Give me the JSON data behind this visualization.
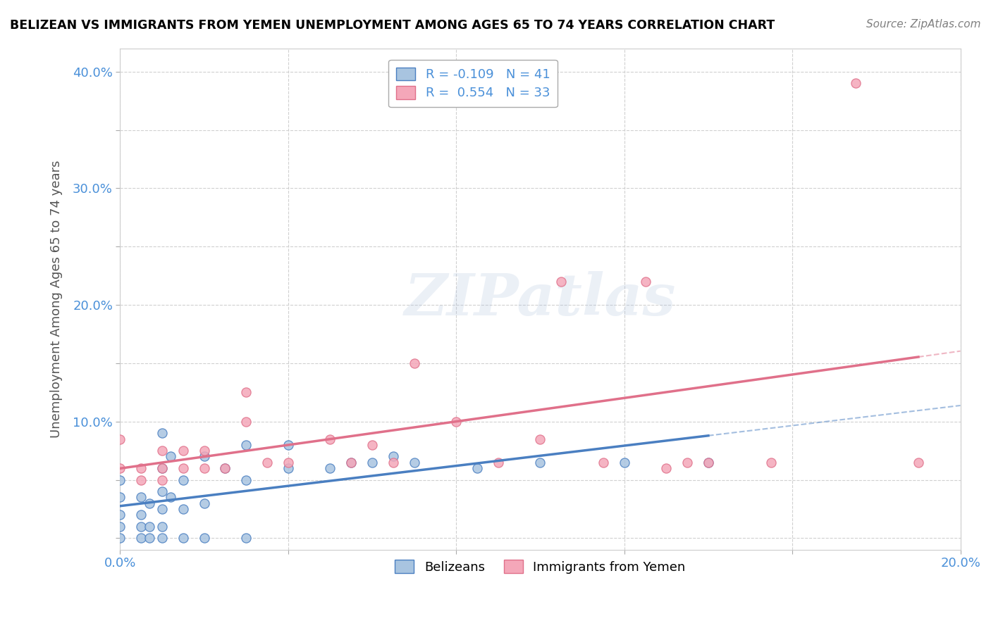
{
  "title": "BELIZEAN VS IMMIGRANTS FROM YEMEN UNEMPLOYMENT AMONG AGES 65 TO 74 YEARS CORRELATION CHART",
  "source": "Source: ZipAtlas.com",
  "ylabel_label": "Unemployment Among Ages 65 to 74 years",
  "xlim": [
    0.0,
    0.2
  ],
  "ylim": [
    -0.01,
    0.42
  ],
  "x_ticks": [
    0.0,
    0.04,
    0.08,
    0.12,
    0.16,
    0.2
  ],
  "x_tick_labels": [
    "0.0%",
    "",
    "",
    "",
    "",
    "20.0%"
  ],
  "y_ticks": [
    0.0,
    0.05,
    0.1,
    0.15,
    0.2,
    0.25,
    0.3,
    0.35,
    0.4
  ],
  "y_tick_labels": [
    "",
    "",
    "10.0%",
    "",
    "20.0%",
    "",
    "30.0%",
    "",
    "40.0%"
  ],
  "legend_labels": [
    "Belizeans",
    "Immigrants from Yemen"
  ],
  "R_belizean": -0.109,
  "N_belizean": 41,
  "R_yemen": 0.554,
  "N_yemen": 33,
  "belizean_color": "#a8c4e0",
  "yemen_color": "#f4a7b9",
  "belizean_line_color": "#4a7fc1",
  "yemen_line_color": "#e0708a",
  "belizean_scatter": [
    [
      0.0,
      0.0
    ],
    [
      0.0,
      0.01
    ],
    [
      0.0,
      0.02
    ],
    [
      0.0,
      0.035
    ],
    [
      0.0,
      0.05
    ],
    [
      0.005,
      0.0
    ],
    [
      0.005,
      0.01
    ],
    [
      0.005,
      0.02
    ],
    [
      0.005,
      0.035
    ],
    [
      0.007,
      0.0
    ],
    [
      0.007,
      0.01
    ],
    [
      0.007,
      0.03
    ],
    [
      0.01,
      0.0
    ],
    [
      0.01,
      0.01
    ],
    [
      0.01,
      0.025
    ],
    [
      0.01,
      0.04
    ],
    [
      0.01,
      0.06
    ],
    [
      0.01,
      0.09
    ],
    [
      0.012,
      0.035
    ],
    [
      0.012,
      0.07
    ],
    [
      0.015,
      0.0
    ],
    [
      0.015,
      0.025
    ],
    [
      0.015,
      0.05
    ],
    [
      0.02,
      0.0
    ],
    [
      0.02,
      0.03
    ],
    [
      0.02,
      0.07
    ],
    [
      0.025,
      0.06
    ],
    [
      0.03,
      0.0
    ],
    [
      0.03,
      0.05
    ],
    [
      0.03,
      0.08
    ],
    [
      0.04,
      0.06
    ],
    [
      0.04,
      0.08
    ],
    [
      0.05,
      0.06
    ],
    [
      0.055,
      0.065
    ],
    [
      0.06,
      0.065
    ],
    [
      0.065,
      0.07
    ],
    [
      0.07,
      0.065
    ],
    [
      0.085,
      0.06
    ],
    [
      0.1,
      0.065
    ],
    [
      0.12,
      0.065
    ],
    [
      0.14,
      0.065
    ]
  ],
  "yemen_scatter": [
    [
      0.0,
      0.06
    ],
    [
      0.0,
      0.085
    ],
    [
      0.005,
      0.05
    ],
    [
      0.005,
      0.06
    ],
    [
      0.01,
      0.05
    ],
    [
      0.01,
      0.06
    ],
    [
      0.01,
      0.075
    ],
    [
      0.015,
      0.06
    ],
    [
      0.015,
      0.075
    ],
    [
      0.02,
      0.06
    ],
    [
      0.02,
      0.075
    ],
    [
      0.025,
      0.06
    ],
    [
      0.03,
      0.1
    ],
    [
      0.03,
      0.125
    ],
    [
      0.035,
      0.065
    ],
    [
      0.04,
      0.065
    ],
    [
      0.05,
      0.085
    ],
    [
      0.055,
      0.065
    ],
    [
      0.06,
      0.08
    ],
    [
      0.065,
      0.065
    ],
    [
      0.07,
      0.15
    ],
    [
      0.08,
      0.1
    ],
    [
      0.09,
      0.065
    ],
    [
      0.1,
      0.085
    ],
    [
      0.105,
      0.22
    ],
    [
      0.115,
      0.065
    ],
    [
      0.125,
      0.22
    ],
    [
      0.13,
      0.06
    ],
    [
      0.135,
      0.065
    ],
    [
      0.14,
      0.065
    ],
    [
      0.155,
      0.065
    ],
    [
      0.175,
      0.39
    ],
    [
      0.19,
      0.065
    ]
  ],
  "watermark": "ZIPatlas",
  "grid_color": "#d0d0d0",
  "background_color": "#ffffff"
}
